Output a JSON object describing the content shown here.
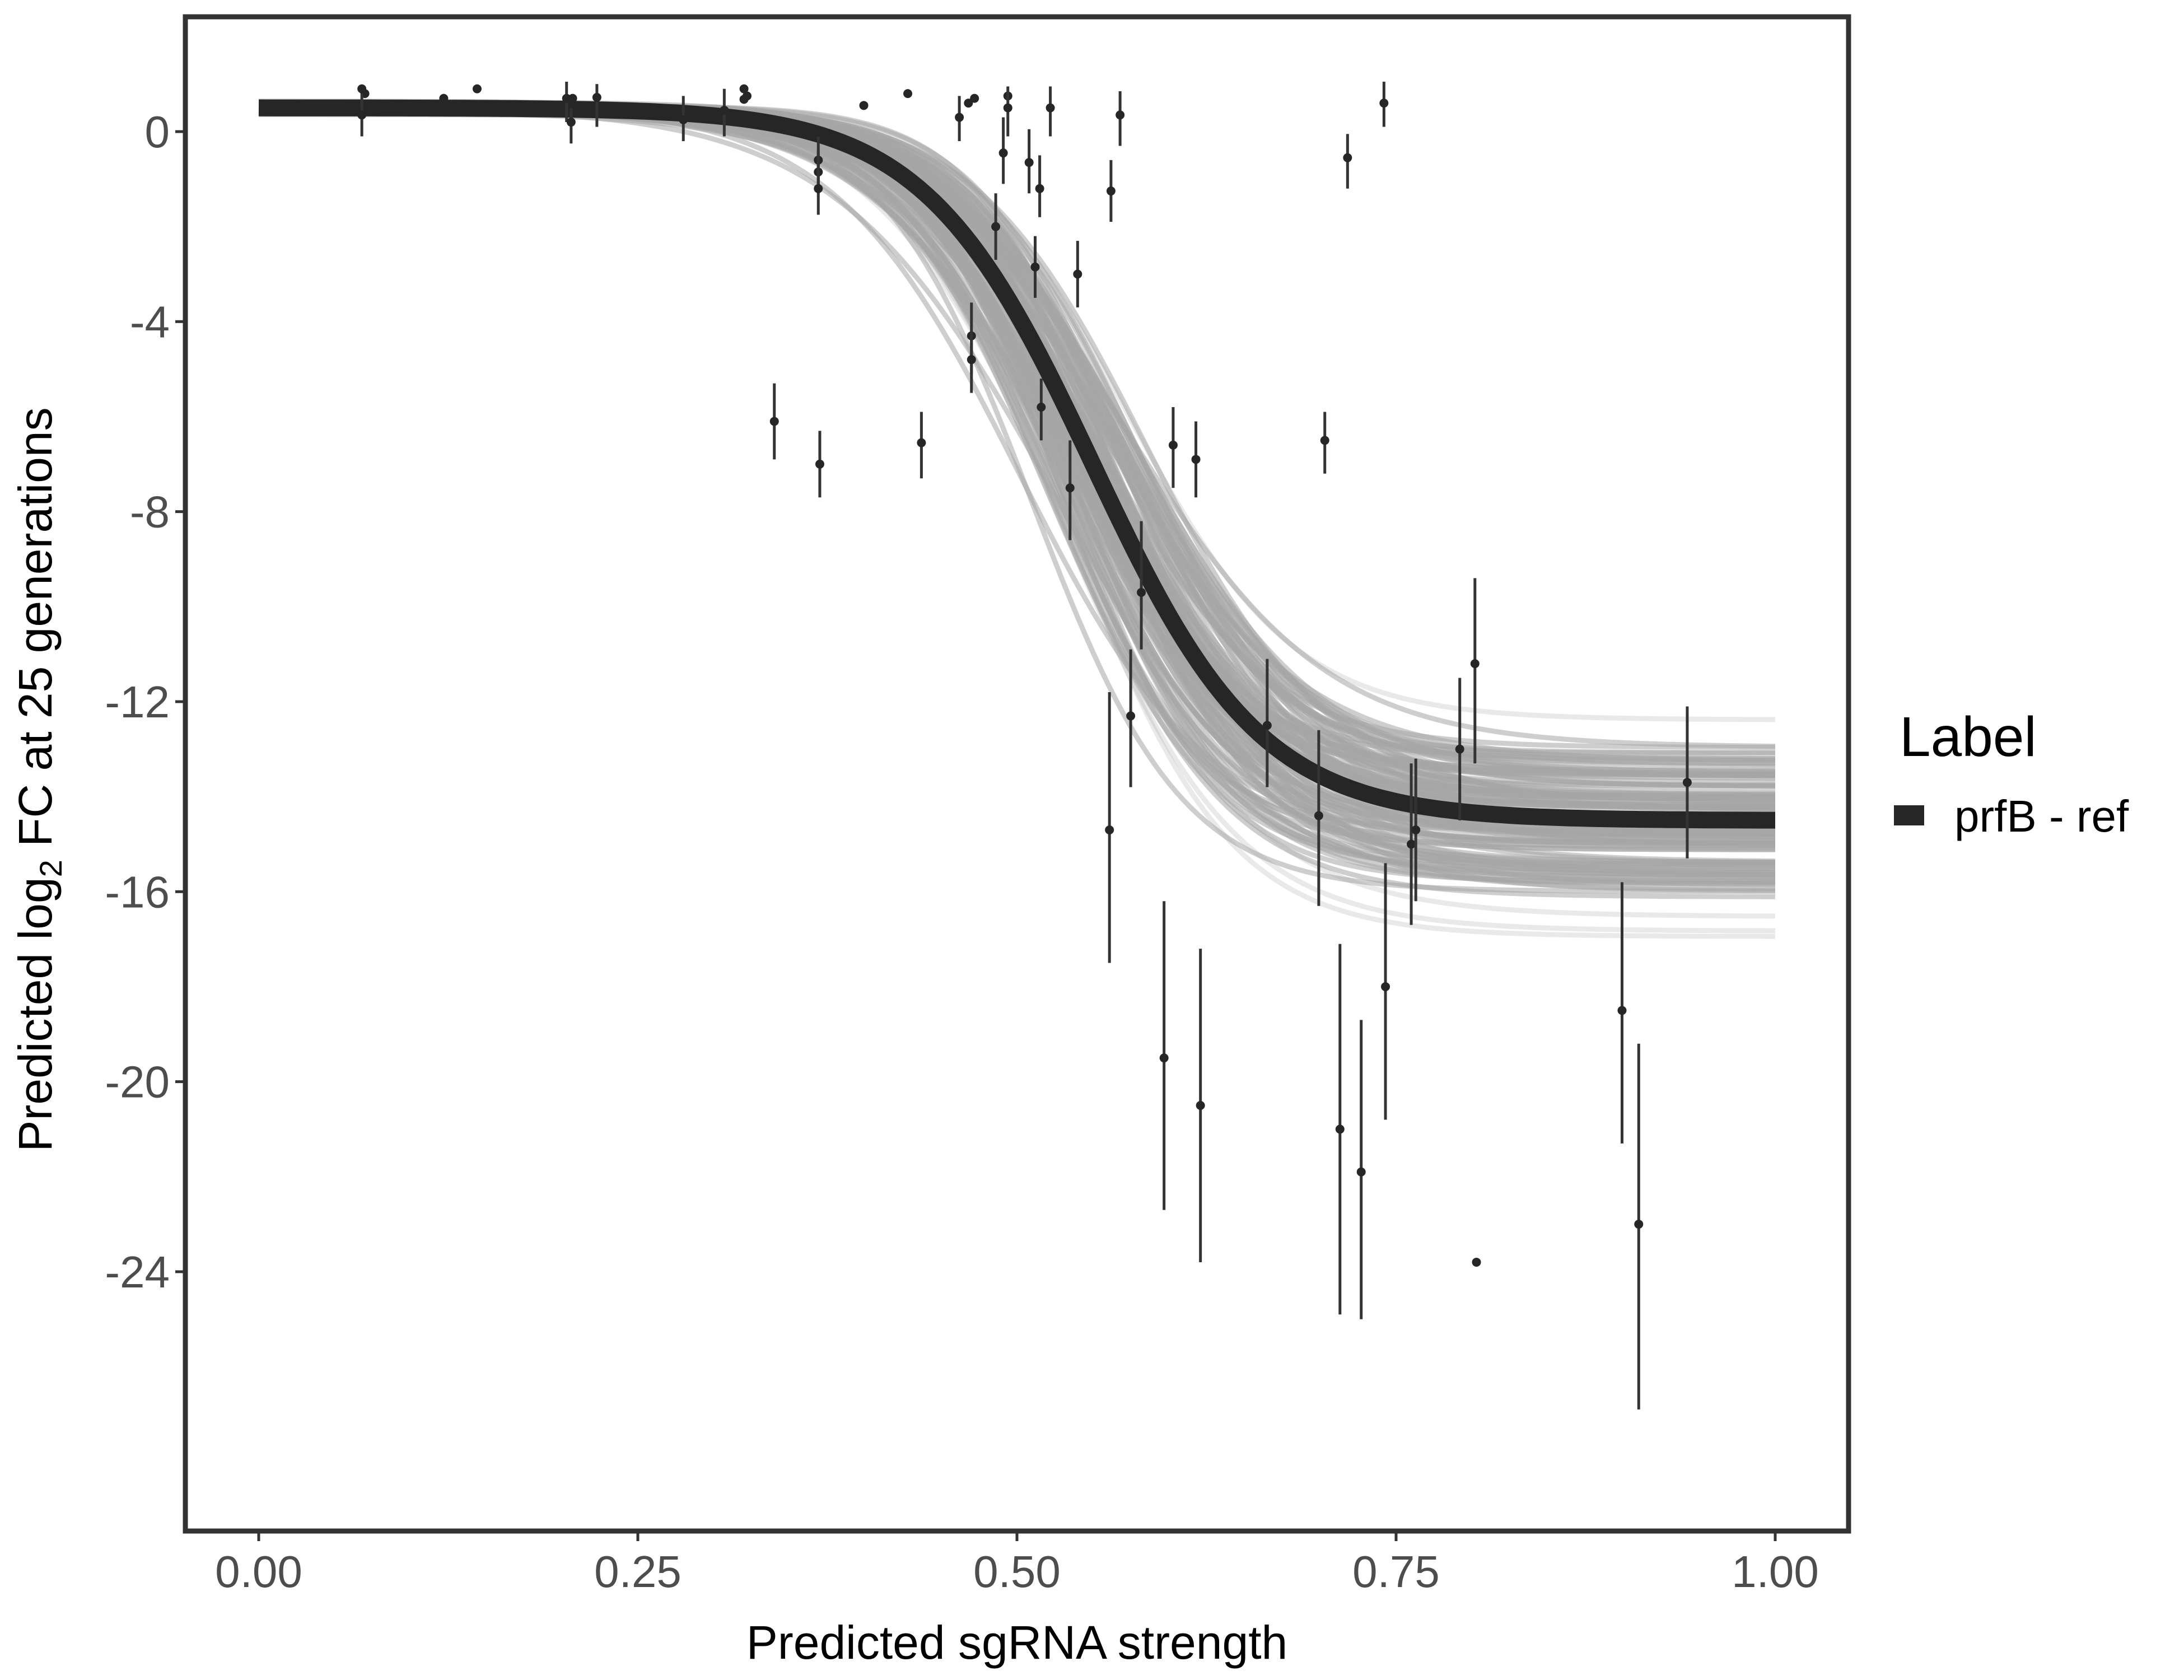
{
  "chart_data": {
    "type": "scatter",
    "title": "",
    "xlabel": "Predicted sgRNA strength",
    "ylabel_parts": [
      "Predicted  log",
      "2",
      " FC at 25 generations"
    ],
    "ylabel": "Predicted log2 FC at 25 generations",
    "xlim": [
      -0.05,
      1.05
    ],
    "ylim": [
      -29.5,
      2.4
    ],
    "x_ticks": [
      0.0,
      0.25,
      0.5,
      0.75,
      1.0
    ],
    "x_tick_labels": [
      "0.00",
      "0.25",
      "0.50",
      "0.75",
      "1.00"
    ],
    "y_ticks": [
      0,
      -4,
      -8,
      -12,
      -16,
      -20,
      -24
    ],
    "y_tick_labels": [
      "0",
      "-4",
      "-8",
      "-12",
      "-16",
      "-20",
      "-24"
    ],
    "grid": false,
    "legend": {
      "title": "Label",
      "placement": "right",
      "entries": [
        {
          "label": "prfB - ref",
          "color": "#262626"
        }
      ]
    },
    "fit_curve": {
      "name": "prfB - ref",
      "model": "logistic",
      "upper": 0.5,
      "lower": -14.5,
      "midpoint": 0.55,
      "steepness": 18,
      "x_range": [
        0.0,
        1.0
      ],
      "color": "#262626"
    },
    "posterior_draws": {
      "count": 120,
      "upper_range": [
        0.1,
        0.6
      ],
      "lower_range": [
        -10.6,
        -19.7
      ],
      "midpoint_range": [
        0.42,
        0.63
      ],
      "steepness_range": [
        9,
        26
      ],
      "color": "#a6a6a6"
    },
    "points": [
      {
        "x": 0.068,
        "y": 0.9,
        "lo": 0.9,
        "hi": 0.9
      },
      {
        "x": 0.07,
        "y": 0.8,
        "lo": 0.8,
        "hi": 0.8
      },
      {
        "x": 0.068,
        "y": 0.35,
        "lo": -0.1,
        "hi": 0.8
      },
      {
        "x": 0.122,
        "y": 0.7,
        "lo": 0.7,
        "hi": 0.7
      },
      {
        "x": 0.144,
        "y": 0.9,
        "lo": 0.9,
        "hi": 0.9
      },
      {
        "x": 0.203,
        "y": 0.7,
        "lo": 0.2,
        "hi": 1.05
      },
      {
        "x": 0.207,
        "y": 0.7,
        "lo": 0.7,
        "hi": 0.7
      },
      {
        "x": 0.206,
        "y": 0.2,
        "lo": -0.25,
        "hi": 0.5
      },
      {
        "x": 0.223,
        "y": 0.72,
        "lo": 0.1,
        "hi": 1.0
      },
      {
        "x": 0.28,
        "y": 0.25,
        "lo": -0.2,
        "hi": 0.75
      },
      {
        "x": 0.307,
        "y": 0.45,
        "lo": -0.1,
        "hi": 0.9
      },
      {
        "x": 0.32,
        "y": 0.9,
        "lo": 0.9,
        "hi": 0.9
      },
      {
        "x": 0.322,
        "y": 0.75,
        "lo": 0.75,
        "hi": 0.75
      },
      {
        "x": 0.32,
        "y": 0.68,
        "lo": 0.68,
        "hi": 0.68
      },
      {
        "x": 0.34,
        "y": -6.1,
        "lo": -6.9,
        "hi": -5.3
      },
      {
        "x": 0.369,
        "y": -0.6,
        "lo": -1.3,
        "hi": -0.1
      },
      {
        "x": 0.369,
        "y": -0.85,
        "lo": -1.3,
        "hi": -0.4
      },
      {
        "x": 0.369,
        "y": -1.2,
        "lo": -1.75,
        "hi": -0.6
      },
      {
        "x": 0.37,
        "y": -7.0,
        "lo": -7.7,
        "hi": -6.3
      },
      {
        "x": 0.399,
        "y": 0.55,
        "lo": 0.55,
        "hi": 0.55
      },
      {
        "x": 0.428,
        "y": 0.8,
        "lo": 0.8,
        "hi": 0.8
      },
      {
        "x": 0.437,
        "y": -6.55,
        "lo": -7.3,
        "hi": -5.9
      },
      {
        "x": 0.462,
        "y": 0.3,
        "lo": -0.2,
        "hi": 0.75
      },
      {
        "x": 0.468,
        "y": 0.6,
        "lo": 0.6,
        "hi": 0.6
      },
      {
        "x": 0.472,
        "y": 0.7,
        "lo": 0.7,
        "hi": 0.7
      },
      {
        "x": 0.47,
        "y": -4.3,
        "lo": -5.1,
        "hi": -3.6
      },
      {
        "x": 0.47,
        "y": -4.8,
        "lo": -5.5,
        "hi": -4.2
      },
      {
        "x": 0.486,
        "y": -2.0,
        "lo": -2.7,
        "hi": -1.3
      },
      {
        "x": 0.491,
        "y": -0.45,
        "lo": -1.1,
        "hi": 0.3
      },
      {
        "x": 0.494,
        "y": 0.75,
        "lo": 0.75,
        "hi": 0.75
      },
      {
        "x": 0.494,
        "y": 0.5,
        "lo": -0.1,
        "hi": 0.95
      },
      {
        "x": 0.508,
        "y": -0.65,
        "lo": -1.3,
        "hi": 0.05
      },
      {
        "x": 0.512,
        "y": -2.85,
        "lo": -3.5,
        "hi": -2.2
      },
      {
        "x": 0.515,
        "y": -1.2,
        "lo": -1.8,
        "hi": -0.5
      },
      {
        "x": 0.516,
        "y": -5.8,
        "lo": -6.5,
        "hi": -5.2
      },
      {
        "x": 0.522,
        "y": 0.5,
        "lo": -0.1,
        "hi": 0.95
      },
      {
        "x": 0.54,
        "y": -3.0,
        "lo": -3.7,
        "hi": -2.3
      },
      {
        "x": 0.535,
        "y": -7.5,
        "lo": -8.6,
        "hi": -6.5
      },
      {
        "x": 0.561,
        "y": -14.7,
        "lo": -17.5,
        "hi": -11.8
      },
      {
        "x": 0.562,
        "y": -1.25,
        "lo": -1.9,
        "hi": -0.6
      },
      {
        "x": 0.568,
        "y": 0.35,
        "lo": -0.3,
        "hi": 0.85
      },
      {
        "x": 0.575,
        "y": -12.3,
        "lo": -13.8,
        "hi": -10.9
      },
      {
        "x": 0.582,
        "y": -9.7,
        "lo": -10.9,
        "hi": -8.2
      },
      {
        "x": 0.597,
        "y": -19.5,
        "lo": -22.7,
        "hi": -16.2
      },
      {
        "x": 0.603,
        "y": -6.6,
        "lo": -7.5,
        "hi": -5.8
      },
      {
        "x": 0.618,
        "y": -6.9,
        "lo": -7.7,
        "hi": -6.1
      },
      {
        "x": 0.621,
        "y": -20.5,
        "lo": -23.8,
        "hi": -17.2
      },
      {
        "x": 0.665,
        "y": -12.5,
        "lo": -13.8,
        "hi": -11.1
      },
      {
        "x": 0.699,
        "y": -14.4,
        "lo": -16.3,
        "hi": -12.6
      },
      {
        "x": 0.703,
        "y": -6.5,
        "lo": -7.2,
        "hi": -5.9
      },
      {
        "x": 0.713,
        "y": -21.0,
        "lo": -24.9,
        "hi": -17.1
      },
      {
        "x": 0.718,
        "y": -0.55,
        "lo": -1.2,
        "hi": -0.05
      },
      {
        "x": 0.727,
        "y": -21.9,
        "lo": -25.0,
        "hi": -18.7
      },
      {
        "x": 0.742,
        "y": 0.6,
        "lo": 0.1,
        "hi": 1.05
      },
      {
        "x": 0.743,
        "y": -18.0,
        "lo": -20.8,
        "hi": -15.4
      },
      {
        "x": 0.76,
        "y": -15.0,
        "lo": -16.7,
        "hi": -13.3
      },
      {
        "x": 0.763,
        "y": -14.7,
        "lo": -16.2,
        "hi": -13.2
      },
      {
        "x": 0.792,
        "y": -13.0,
        "lo": -14.5,
        "hi": -11.5
      },
      {
        "x": 0.802,
        "y": -11.2,
        "lo": -13.3,
        "hi": -9.4
      },
      {
        "x": 0.803,
        "y": -23.8,
        "lo": -23.8,
        "hi": -23.8
      },
      {
        "x": 0.899,
        "y": -18.5,
        "lo": -21.3,
        "hi": -15.8
      },
      {
        "x": 0.91,
        "y": -23.0,
        "lo": -26.9,
        "hi": -19.2
      },
      {
        "x": 0.942,
        "y": -13.7,
        "lo": -15.3,
        "hi": -12.1
      }
    ]
  }
}
